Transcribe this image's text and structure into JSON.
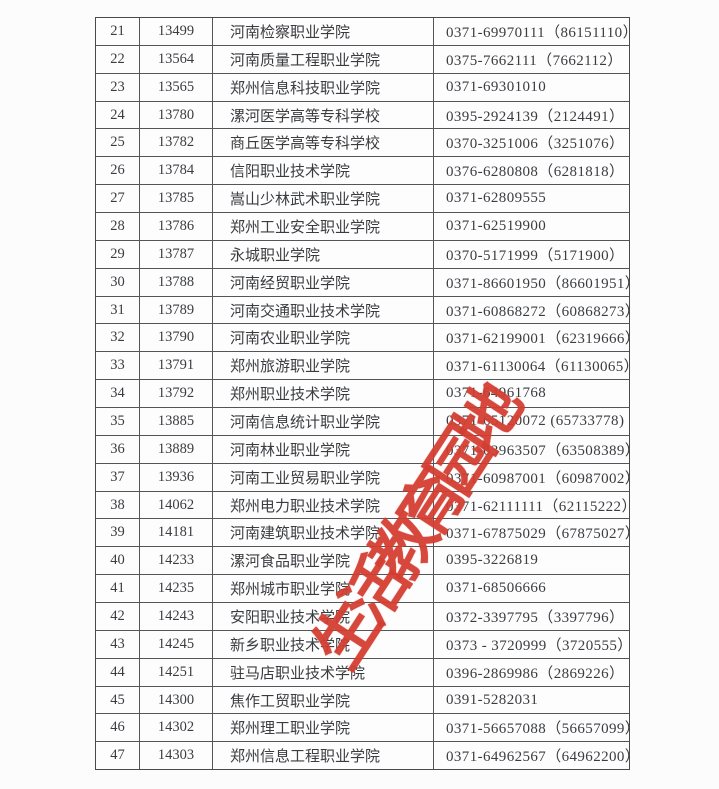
{
  "page": {
    "background": "#fcfcfc",
    "text_color": "#3a3c40",
    "border_color": "#555555"
  },
  "watermark": {
    "text": "生活教育园地",
    "color": "#d43c31",
    "rotation_deg": -57
  },
  "table": {
    "field_order": [
      "no",
      "code",
      "name",
      "phone"
    ],
    "rows": [
      {
        "no": "21",
        "code": "13499",
        "name": "河南检察职业学院",
        "phone": "0371-69970111（86151110）"
      },
      {
        "no": "22",
        "code": "13564",
        "name": "河南质量工程职业学院",
        "phone": "0375-7662111（7662112）"
      },
      {
        "no": "23",
        "code": "13565",
        "name": "郑州信息科技职业学院",
        "phone": "0371-69301010"
      },
      {
        "no": "24",
        "code": "13780",
        "name": "漯河医学高等专科学校",
        "phone": "0395-2924139（2124491）"
      },
      {
        "no": "25",
        "code": "13782",
        "name": "商丘医学高等专科学校",
        "phone": "0370-3251006（3251076）"
      },
      {
        "no": "26",
        "code": "13784",
        "name": "信阳职业技术学院",
        "phone": "0376-6280808（6281818）"
      },
      {
        "no": "27",
        "code": "13785",
        "name": "嵩山少林武术职业学院",
        "phone": "0371-62809555"
      },
      {
        "no": "28",
        "code": "13786",
        "name": "郑州工业安全职业学院",
        "phone": "0371-62519900"
      },
      {
        "no": "29",
        "code": "13787",
        "name": "永城职业学院",
        "phone": "0370-5171999（5171900）"
      },
      {
        "no": "30",
        "code": "13788",
        "name": "河南经贸职业学院",
        "phone": "0371-86601950（86601951）"
      },
      {
        "no": "31",
        "code": "13789",
        "name": "河南交通职业技术学院",
        "phone": "0371-60868272（60868273）"
      },
      {
        "no": "32",
        "code": "13790",
        "name": "河南农业职业学院",
        "phone": "0371-62199001（62319666）"
      },
      {
        "no": "33",
        "code": "13791",
        "name": "郑州旅游职业学院",
        "phone": "0371-61130064（61130065）"
      },
      {
        "no": "34",
        "code": "13792",
        "name": "郑州职业技术学院",
        "phone": "0371-64961768"
      },
      {
        "no": "35",
        "code": "13885",
        "name": "河南信息统计职业学院",
        "phone": "0371-65120072 (65733778)"
      },
      {
        "no": "36",
        "code": "13889",
        "name": "河南林业职业学院",
        "phone": "0371-63963507（63508389）"
      },
      {
        "no": "37",
        "code": "13936",
        "name": "河南工业贸易职业学院",
        "phone": "0371-60987001（60987002）"
      },
      {
        "no": "38",
        "code": "14062",
        "name": "郑州电力职业技术学院",
        "phone": "0371-62111111（62115222）"
      },
      {
        "no": "39",
        "code": "14181",
        "name": "河南建筑职业技术学院",
        "phone": "0371-67875029（67875027）"
      },
      {
        "no": "40",
        "code": "14233",
        "name": "漯河食品职业学院",
        "phone": "0395-3226819"
      },
      {
        "no": "41",
        "code": "14235",
        "name": "郑州城市职业学院",
        "phone": "0371-68506666"
      },
      {
        "no": "42",
        "code": "14243",
        "name": "安阳职业技术学院",
        "phone": "0372-3397795（3397796）"
      },
      {
        "no": "43",
        "code": "14245",
        "name": "新乡职业技术学院",
        "phone": "0373 - 3720999（3720555）"
      },
      {
        "no": "44",
        "code": "14251",
        "name": "驻马店职业技术学院",
        "phone": "0396-2869986（2869226）"
      },
      {
        "no": "45",
        "code": "14300",
        "name": "焦作工贸职业学院",
        "phone": "0391-5282031"
      },
      {
        "no": "46",
        "code": "14302",
        "name": "郑州理工职业学院",
        "phone": "0371-56657088（56657099）"
      },
      {
        "no": "47",
        "code": "14303",
        "name": "郑州信息工程职业学院",
        "phone": "0371-64962567（64962200）"
      }
    ]
  }
}
